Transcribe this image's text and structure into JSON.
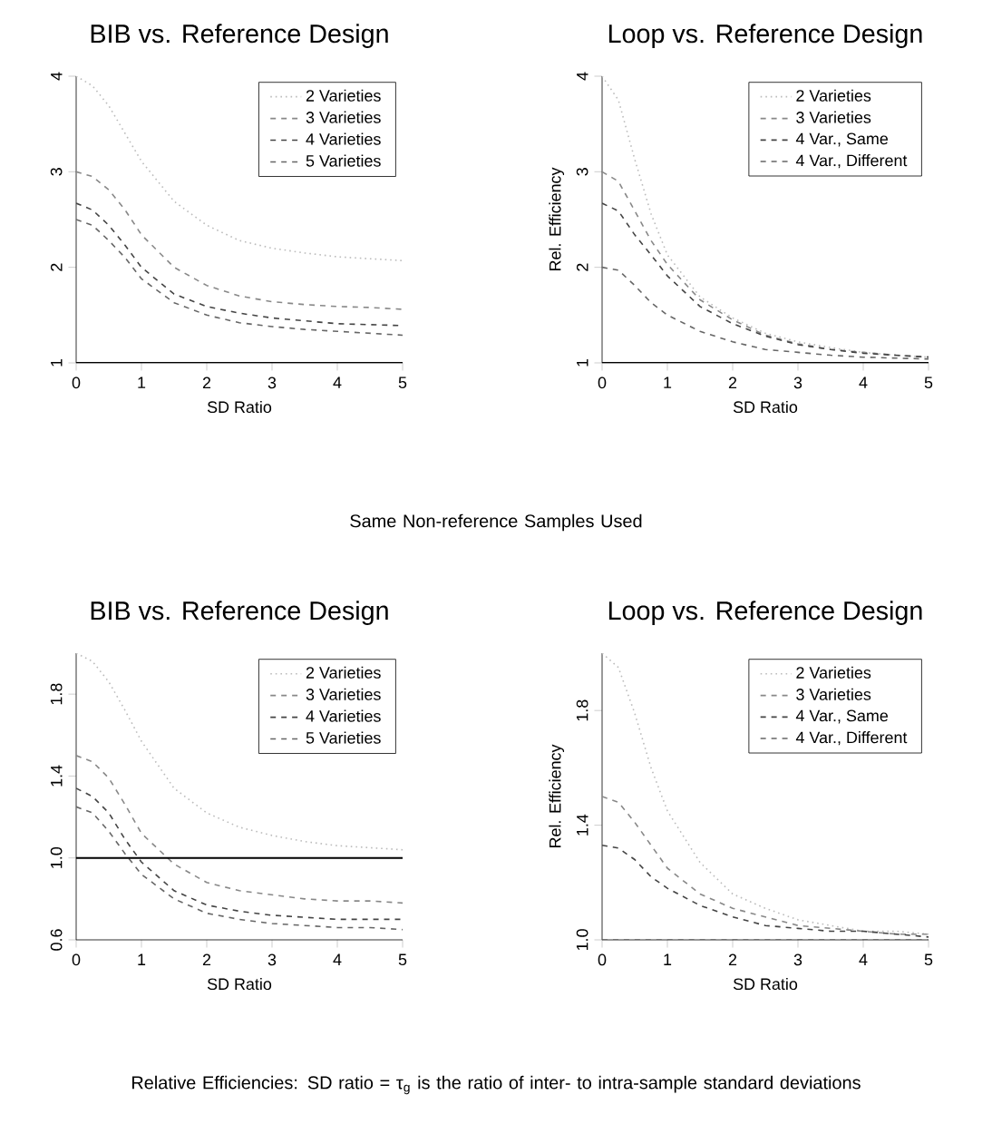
{
  "chart_data": [
    {
      "type": "line",
      "title": "BIB vs. Reference Design",
      "xlabel": "SD Ratio",
      "x": [
        0,
        0.25,
        0.5,
        0.75,
        1,
        1.5,
        2,
        2.5,
        3,
        3.5,
        4,
        4.5,
        5
      ],
      "xlim": [
        0,
        5
      ],
      "xticks": [
        0,
        1,
        2,
        3,
        4,
        5
      ],
      "ylim": [
        1,
        4
      ],
      "yticks": [
        1,
        2,
        3,
        4
      ],
      "legend": "top right",
      "series": [
        {
          "name": "2 Varieties",
          "color": "#bbbbbb",
          "line_style": "dotted",
          "values": [
            4,
            3.9,
            3.69,
            3.4,
            3.11,
            2.69,
            2.44,
            2.28,
            2.2,
            2.15,
            2.11,
            2.09,
            2.07
          ]
        },
        {
          "name": "3 Varieties",
          "color": "#888888",
          "line_style": "dashed",
          "values": [
            3.0,
            2.95,
            2.81,
            2.6,
            2.34,
            2.0,
            1.81,
            1.7,
            1.64,
            1.61,
            1.59,
            1.58,
            1.56
          ]
        },
        {
          "name": "4 Varieties",
          "color": "#444444",
          "line_style": "dashed",
          "values": [
            2.67,
            2.6,
            2.44,
            2.23,
            2.0,
            1.72,
            1.59,
            1.52,
            1.47,
            1.44,
            1.41,
            1.4,
            1.39
          ]
        },
        {
          "name": "5 Varieties",
          "color": "#666666",
          "line_style": "dashed",
          "values": [
            2.5,
            2.44,
            2.28,
            2.1,
            1.88,
            1.63,
            1.5,
            1.42,
            1.38,
            1.35,
            1.33,
            1.31,
            1.29
          ]
        }
      ],
      "ref_lines": [
        {
          "axis": "y",
          "value": 1,
          "color": "#000000"
        }
      ]
    },
    {
      "type": "line",
      "title": "Loop vs. Reference Design",
      "xlabel": "SD Ratio",
      "ylabel": "Rel. Efficiency",
      "x": [
        0,
        0.25,
        0.5,
        0.75,
        1,
        1.5,
        2,
        2.5,
        3,
        3.5,
        4,
        4.5,
        5
      ],
      "xlim": [
        0,
        5
      ],
      "xticks": [
        0,
        1,
        2,
        3,
        4,
        5
      ],
      "ylim": [
        1,
        4
      ],
      "yticks": [
        1,
        2,
        3,
        4
      ],
      "legend": "top right",
      "series": [
        {
          "name": "2 Varieties",
          "color": "#bbbbbb",
          "line_style": "dotted",
          "values": [
            4,
            3.75,
            3.13,
            2.56,
            2.13,
            1.69,
            1.47,
            1.31,
            1.22,
            1.16,
            1.11,
            1.08,
            1.06
          ]
        },
        {
          "name": "3 Varieties",
          "color": "#888888",
          "line_style": "dashed",
          "values": [
            3.0,
            2.9,
            2.59,
            2.28,
            2.03,
            1.66,
            1.45,
            1.29,
            1.2,
            1.14,
            1.11,
            1.08,
            1.06
          ]
        },
        {
          "name": "4 Var., Same",
          "color": "#444444",
          "line_style": "dashed",
          "values": [
            2.67,
            2.59,
            2.34,
            2.13,
            1.91,
            1.59,
            1.41,
            1.28,
            1.19,
            1.14,
            1.1,
            1.08,
            1.06
          ]
        },
        {
          "name": "4 Var., Different",
          "color": "#666666",
          "line_style": "dashed",
          "values": [
            2.0,
            1.97,
            1.81,
            1.63,
            1.5,
            1.33,
            1.22,
            1.14,
            1.11,
            1.08,
            1.06,
            1.05,
            1.04
          ]
        }
      ],
      "ref_lines": [
        {
          "axis": "y",
          "value": 1,
          "color": "#000000"
        }
      ]
    },
    {
      "type": "line",
      "title": "BIB vs. Reference Design",
      "xlabel": "SD Ratio",
      "x": [
        0,
        0.25,
        0.5,
        0.75,
        1,
        1.5,
        2,
        2.5,
        3,
        3.5,
        4,
        4.5,
        5
      ],
      "xlim": [
        0,
        5
      ],
      "xticks": [
        0,
        1,
        2,
        3,
        4,
        5
      ],
      "ylim": [
        0.6,
        2.0
      ],
      "yticks": [
        {
          "value": 0.6,
          "label": "0.6"
        },
        {
          "value": 1,
          "label": "1.0"
        },
        {
          "value": 1.4,
          "label": "1.4"
        },
        {
          "value": 1.8,
          "label": "1.8"
        }
      ],
      "legend": "top right",
      "annotations": [
        "Same Non-reference Samples Used"
      ],
      "series": [
        {
          "name": "2 Varieties",
          "color": "#bbbbbb",
          "line_style": "dotted",
          "values": [
            2.0,
            1.96,
            1.86,
            1.72,
            1.57,
            1.34,
            1.22,
            1.15,
            1.11,
            1.08,
            1.06,
            1.05,
            1.04
          ]
        },
        {
          "name": "3 Varieties",
          "color": "#888888",
          "line_style": "dashed",
          "values": [
            1.5,
            1.47,
            1.39,
            1.26,
            1.12,
            0.97,
            0.88,
            0.84,
            0.82,
            0.8,
            0.79,
            0.79,
            0.78
          ]
        },
        {
          "name": "4 Varieties",
          "color": "#444444",
          "line_style": "dashed",
          "values": [
            1.34,
            1.3,
            1.22,
            1.09,
            0.98,
            0.84,
            0.77,
            0.74,
            0.72,
            0.71,
            0.7,
            0.7,
            0.7
          ]
        },
        {
          "name": "5 Varieties",
          "color": "#666666",
          "line_style": "dashed",
          "values": [
            1.25,
            1.22,
            1.13,
            1.02,
            0.92,
            0.8,
            0.73,
            0.7,
            0.68,
            0.67,
            0.66,
            0.66,
            0.65
          ]
        }
      ],
      "ref_lines": [
        {
          "axis": "y",
          "value": 1,
          "color": "#000000"
        }
      ]
    },
    {
      "type": "line",
      "title": "Loop vs. Reference Design",
      "xlabel": "SD Ratio",
      "ylabel": "Rel. Efficiency",
      "x": [
        0,
        0.25,
        0.5,
        0.75,
        1,
        1.5,
        2,
        2.5,
        3,
        3.5,
        4,
        4.5,
        5
      ],
      "xlim": [
        0,
        5
      ],
      "xticks": [
        0,
        1,
        2,
        3,
        4,
        5
      ],
      "ylim": [
        1.0,
        2.0
      ],
      "yticks": [
        {
          "value": 1,
          "label": "1.0"
        },
        {
          "value": 1.4,
          "label": "1.4"
        },
        {
          "value": 1.8,
          "label": "1.8"
        }
      ],
      "legend": "top right",
      "annotations": [
        "Relative Efficiencies: SD ratio = τ$_{g}$ is the ratio of inter- to intra-sample standard deviations"
      ],
      "series": [
        {
          "name": "2 Varieties",
          "color": "#bbbbbb",
          "line_style": "dotted",
          "values": [
            2.0,
            1.95,
            1.79,
            1.6,
            1.45,
            1.27,
            1.16,
            1.11,
            1.07,
            1.05,
            1.03,
            1.03,
            1.02
          ]
        },
        {
          "name": "3 Varieties",
          "color": "#888888",
          "line_style": "dashed",
          "values": [
            1.5,
            1.48,
            1.41,
            1.33,
            1.25,
            1.16,
            1.11,
            1.08,
            1.05,
            1.04,
            1.03,
            1.02,
            1.02
          ]
        },
        {
          "name": "4 Var., Same",
          "color": "#444444",
          "line_style": "dashed",
          "values": [
            1.33,
            1.32,
            1.28,
            1.22,
            1.18,
            1.12,
            1.08,
            1.05,
            1.04,
            1.03,
            1.03,
            1.02,
            1.01
          ]
        },
        {
          "name": "4 Var., Different",
          "color": "#666666",
          "line_style": "dashed",
          "values": [
            1.0,
            1.0,
            1.0,
            1.0,
            1.0,
            1.0,
            1.0,
            1.0,
            1.0,
            1.0,
            1.0,
            1.0,
            1.0
          ]
        }
      ]
    }
  ]
}
